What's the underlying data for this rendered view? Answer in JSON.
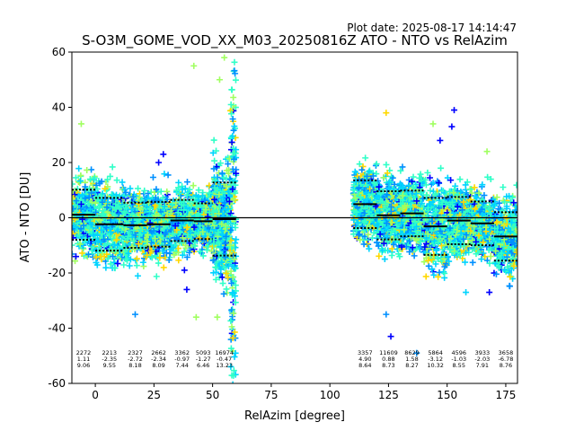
{
  "plot_date": "Plot date: 2025-08-17 14:14:47",
  "chart_data": {
    "type": "scatter",
    "title": "S-O3M_GOME_VOD_XX_M03_20250816Z ATO - NTO vs RelAzim",
    "xlabel": "RelAzim [degree]",
    "ylabel": "ATO - NTO [DU]",
    "xlim": [
      -10,
      180
    ],
    "ylim": [
      -60,
      60
    ],
    "xticks": [
      0,
      25,
      50,
      75,
      100,
      125,
      150,
      175
    ],
    "yticks": [
      -60,
      -40,
      -20,
      0,
      20,
      40,
      60
    ],
    "zero_line": 0,
    "colormap": [
      "#0000ff",
      "#0090ff",
      "#00d4ff",
      "#30ffc8",
      "#a0ff60",
      "#ffd800",
      "#ff8000"
    ],
    "point_clusters": [
      {
        "x_range": [
          -10,
          60
        ],
        "y_range": [
          -28,
          28
        ],
        "density": "high"
      },
      {
        "x_range": [
          110,
          180
        ],
        "y_range": [
          -32,
          30
        ],
        "density": "high"
      }
    ],
    "outlier_points": [
      {
        "x": 55,
        "y": 58,
        "color": "#a0ff60"
      },
      {
        "x": 42,
        "y": 55,
        "color": "#a0ff60"
      },
      {
        "x": 53,
        "y": 50,
        "color": "#a0ff60"
      },
      {
        "x": -6,
        "y": 34,
        "color": "#a0ff60"
      },
      {
        "x": 29,
        "y": 23,
        "color": "#0000ff"
      },
      {
        "x": 27,
        "y": 20,
        "color": "#0000ff"
      },
      {
        "x": 38,
        "y": -19,
        "color": "#0000ff"
      },
      {
        "x": 39,
        "y": -26,
        "color": "#0000ff"
      },
      {
        "x": 17,
        "y": -35,
        "color": "#0090ff"
      },
      {
        "x": 43,
        "y": -36,
        "color": "#a0ff60"
      },
      {
        "x": 52,
        "y": -36,
        "color": "#a0ff60"
      },
      {
        "x": 153,
        "y": 39,
        "color": "#0000ff"
      },
      {
        "x": 152,
        "y": 33,
        "color": "#0000ff"
      },
      {
        "x": 147,
        "y": 28,
        "color": "#0000ff"
      },
      {
        "x": 144,
        "y": 34,
        "color": "#a0ff60"
      },
      {
        "x": 124,
        "y": 38,
        "color": "#ffd800"
      },
      {
        "x": 126,
        "y": -43,
        "color": "#0000ff"
      },
      {
        "x": 124,
        "y": -35,
        "color": "#0090ff"
      },
      {
        "x": 137,
        "y": -49,
        "color": "#0090ff"
      },
      {
        "x": 168,
        "y": -27,
        "color": "#0000ff"
      },
      {
        "x": 167,
        "y": 24,
        "color": "#a0ff60"
      },
      {
        "x": 158,
        "y": -27,
        "color": "#00d4ff"
      }
    ],
    "bins": [
      {
        "x0": -10,
        "x1": 0,
        "mean": 1.11,
        "std": 9.06,
        "count": "2272",
        "mean_label": "1.11",
        "std_label": "9.06"
      },
      {
        "x0": 0,
        "x1": 12,
        "mean": -2.35,
        "std": 9.55,
        "count": "2213",
        "mean_label": "-2.35",
        "std_label": "9.55"
      },
      {
        "x0": 12,
        "x1": 22,
        "mean": -2.72,
        "std": 8.18,
        "count": "2327",
        "mean_label": "-2.72",
        "std_label": "8.18"
      },
      {
        "x0": 22,
        "x1": 32,
        "mean": -2.34,
        "std": 8.09,
        "count": "2662",
        "mean_label": "-2.34",
        "std_label": "8.09"
      },
      {
        "x0": 32,
        "x1": 42,
        "mean": -0.97,
        "std": 7.44,
        "count": "3362",
        "mean_label": "-0.97",
        "std_label": "7.44"
      },
      {
        "x0": 42,
        "x1": 50,
        "mean": -1.27,
        "std": 6.46,
        "count": "5093",
        "mean_label": "-1.27",
        "std_label": "6.46"
      },
      {
        "x0": 50,
        "x1": 60,
        "mean": -0.47,
        "std": 13.23,
        "count": "16974",
        "mean_label": "-0.47",
        "std_label": "13.23"
      },
      {
        "x0": 110,
        "x1": 120,
        "mean": 4.9,
        "std": 8.64,
        "count": "3357",
        "mean_label": "4.90",
        "std_label": "8.64"
      },
      {
        "x0": 120,
        "x1": 130,
        "mean": 0.88,
        "std": 8.73,
        "count": "11609",
        "mean_label": "0.88",
        "std_label": "8.73"
      },
      {
        "x0": 130,
        "x1": 140,
        "mean": 1.58,
        "std": 8.27,
        "count": "8629",
        "mean_label": "1.58",
        "std_label": "8.27"
      },
      {
        "x0": 140,
        "x1": 150,
        "mean": -3.12,
        "std": 10.32,
        "count": "5864",
        "mean_label": "-3.12",
        "std_label": "10.32"
      },
      {
        "x0": 150,
        "x1": 160,
        "mean": -1.03,
        "std": 8.55,
        "count": "4596",
        "mean_label": "-1.03",
        "std_label": "8.55"
      },
      {
        "x0": 160,
        "x1": 170,
        "mean": -2.03,
        "std": 7.91,
        "count": "3933",
        "mean_label": "-2.03",
        "std_label": "7.91"
      },
      {
        "x0": 170,
        "x1": 180,
        "mean": -6.78,
        "std": 8.76,
        "count": "3658",
        "mean_label": "-6.78",
        "std_label": "8.76"
      }
    ],
    "grid": false,
    "legend": "none"
  }
}
